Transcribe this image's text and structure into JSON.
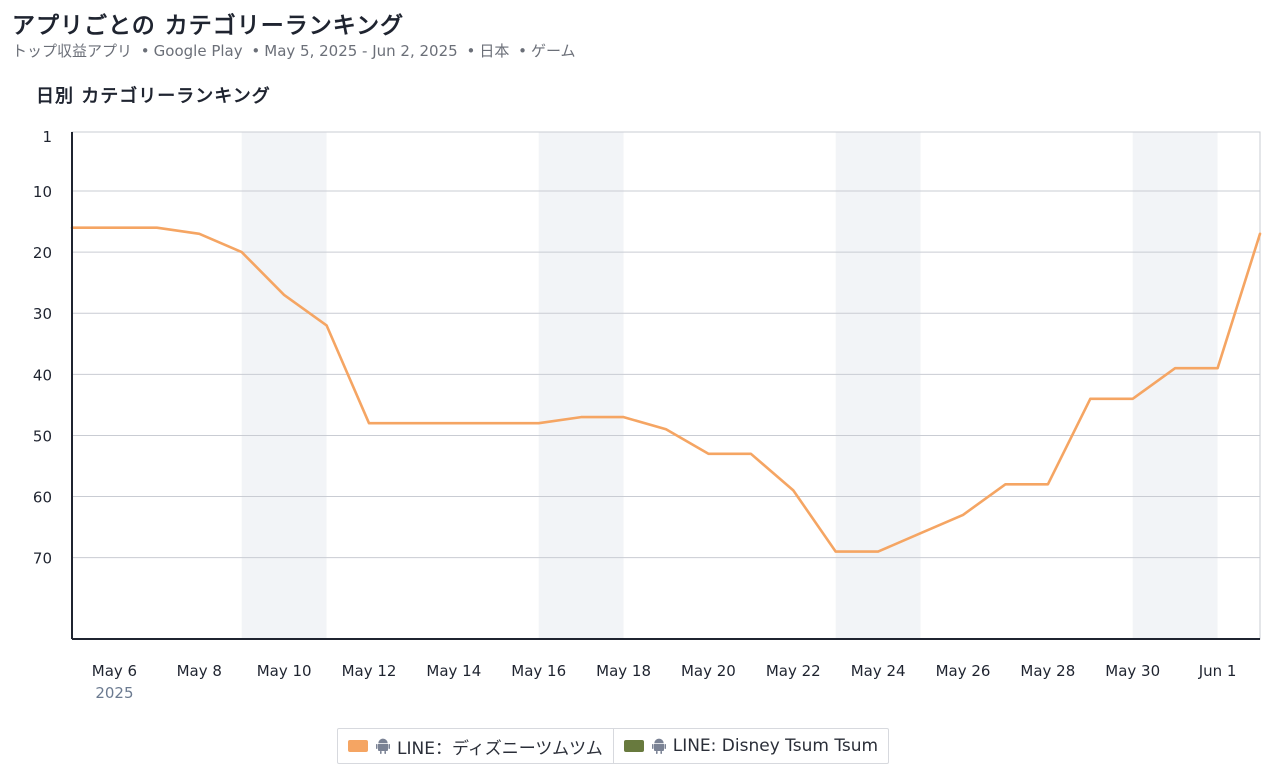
{
  "header": {
    "title": "アプリごとの カテゴリーランキング",
    "subtitle": {
      "segment": "トップ収益アプリ",
      "store": "Google Play",
      "date_range": "May 5, 2025 - Jun 2, 2025",
      "country": "日本",
      "category": "ゲーム",
      "separator": "•"
    }
  },
  "section_title": "日別 カテゴリーランキング",
  "chart_data": {
    "type": "line",
    "title": "日別 カテゴリーランキング",
    "y_axis": {
      "reversed": true,
      "range": [
        1,
        80
      ],
      "ticks": [
        1,
        10,
        20,
        30,
        40,
        50,
        60,
        70
      ]
    },
    "x_axis": {
      "range": [
        "2025-05-05",
        "2025-06-02"
      ],
      "tick_labels": [
        "May 6",
        "May 8",
        "May 10",
        "May 12",
        "May 14",
        "May 16",
        "May 18",
        "May 20",
        "May 22",
        "May 24",
        "May 26",
        "May 28",
        "May 30",
        "Jun 1"
      ],
      "tick_dates": [
        "2025-05-06",
        "2025-05-08",
        "2025-05-10",
        "2025-05-12",
        "2025-05-14",
        "2025-05-16",
        "2025-05-18",
        "2025-05-20",
        "2025-05-22",
        "2025-05-24",
        "2025-05-26",
        "2025-05-28",
        "2025-05-30",
        "2025-06-01"
      ],
      "year_label": "2025"
    },
    "weekend_bands": [
      [
        "2025-05-09",
        "2025-05-11"
      ],
      [
        "2025-05-16",
        "2025-05-18"
      ],
      [
        "2025-05-23",
        "2025-05-25"
      ],
      [
        "2025-05-30",
        "2025-06-01"
      ]
    ],
    "grid": true,
    "series": [
      {
        "name": "LINE：ディズニーツムツム",
        "color": "#F5A563",
        "x": [
          "2025-05-05",
          "2025-05-06",
          "2025-05-07",
          "2025-05-08",
          "2025-05-09",
          "2025-05-10",
          "2025-05-11",
          "2025-05-12",
          "2025-05-13",
          "2025-05-14",
          "2025-05-15",
          "2025-05-16",
          "2025-05-17",
          "2025-05-18",
          "2025-05-19",
          "2025-05-20",
          "2025-05-21",
          "2025-05-22",
          "2025-05-23",
          "2025-05-24",
          "2025-05-25",
          "2025-05-26",
          "2025-05-27",
          "2025-05-28",
          "2025-05-29",
          "2025-05-30",
          "2025-05-31",
          "2025-06-01",
          "2025-06-02"
        ],
        "values": [
          16,
          16,
          16,
          17,
          20,
          27,
          32,
          48,
          48,
          48,
          48,
          48,
          47,
          47,
          49,
          53,
          53,
          59,
          69,
          69,
          66,
          63,
          58,
          58,
          44,
          44,
          39,
          39,
          17
        ]
      },
      {
        "name": "LINE: Disney Tsum Tsum",
        "color": "#687A3E",
        "x": [],
        "values": []
      }
    ],
    "legend": "bottom-center"
  }
}
